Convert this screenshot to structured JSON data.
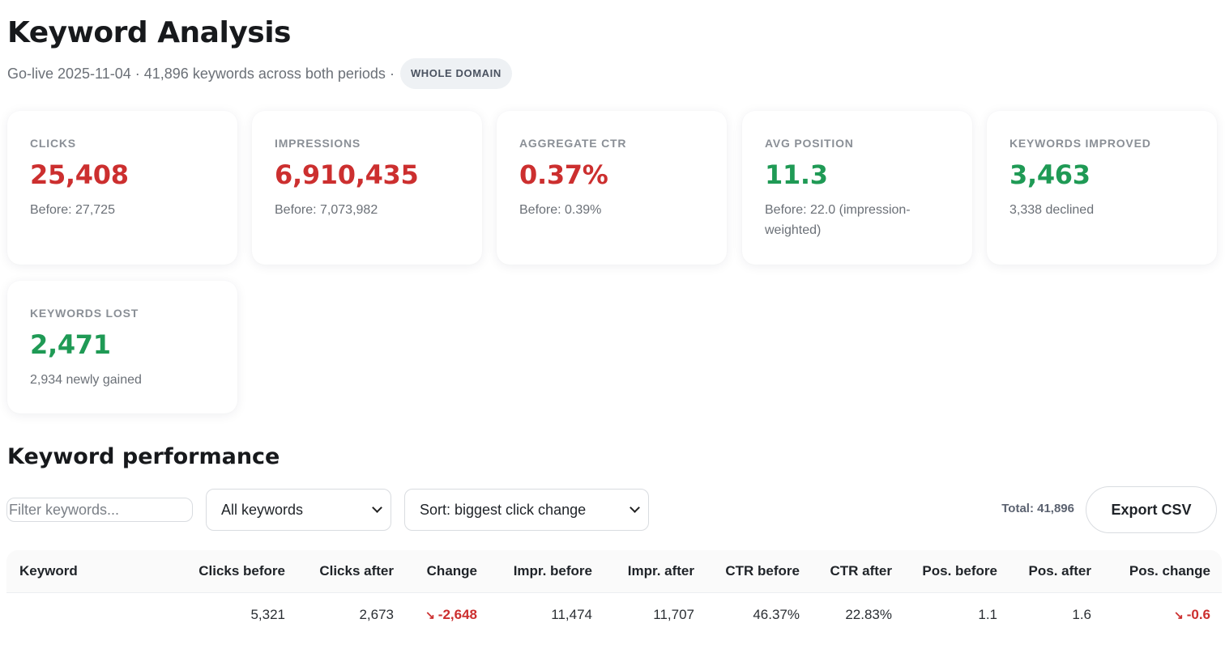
{
  "header": {
    "title": "Keyword Analysis",
    "go_live": "Go-live 2025-11-04",
    "sep1": "·",
    "keywords_summary": "41,896 keywords across both periods",
    "sep2": "·",
    "scope_badge": "WHOLE DOMAIN"
  },
  "cards": [
    {
      "label": "CLICKS",
      "value": "25,408",
      "note": "Before: 27,725",
      "trend": "negative",
      "color": "#cc2f2f"
    },
    {
      "label": "IMPRESSIONS",
      "value": "6,910,435",
      "note": "Before: 7,073,982",
      "trend": "negative",
      "color": "#cc2f2f"
    },
    {
      "label": "AGGREGATE CTR",
      "value": "0.37%",
      "note": "Before: 0.39%",
      "trend": "negative",
      "color": "#cc2f2f"
    },
    {
      "label": "AVG POSITION",
      "value": "11.3",
      "note": "Before: 22.0 (impression-weighted)",
      "trend": "positive",
      "color": "#1f9a55"
    },
    {
      "label": "KEYWORDS IMPROVED",
      "value": "3,463",
      "note": "3,338 declined",
      "trend": "positive",
      "color": "#1f9a55"
    },
    {
      "label": "KEYWORDS LOST",
      "value": "2,471",
      "note": "2,934 newly gained",
      "trend": "positive",
      "color": "#1f9a55"
    }
  ],
  "performance": {
    "title": "Keyword performance",
    "filter_placeholder": "Filter keywords...",
    "filter_value": "",
    "keyword_set_select": "All keywords",
    "sort_select": "Sort: biggest click change",
    "total": "Total: 41,896",
    "export_label": "Export CSV"
  },
  "table": {
    "columns": [
      "Keyword",
      "Clicks before",
      "Clicks after",
      "Change",
      "Impr. before",
      "Impr. after",
      "CTR before",
      "CTR after",
      "Pos. before",
      "Pos. after",
      "Pos. change"
    ],
    "rows": [
      {
        "keyword": "",
        "clicks_before": "5,321",
        "clicks_after": "2,673",
        "change_arrow": "↘",
        "change": "-2,648",
        "impr_before": "11,474",
        "impr_after": "11,707",
        "ctr_before": "46.37%",
        "ctr_after": "22.83%",
        "pos_before": "1.1",
        "pos_after": "1.6",
        "pos_change_arrow": "↘",
        "pos_change": "-0.6"
      }
    ]
  }
}
